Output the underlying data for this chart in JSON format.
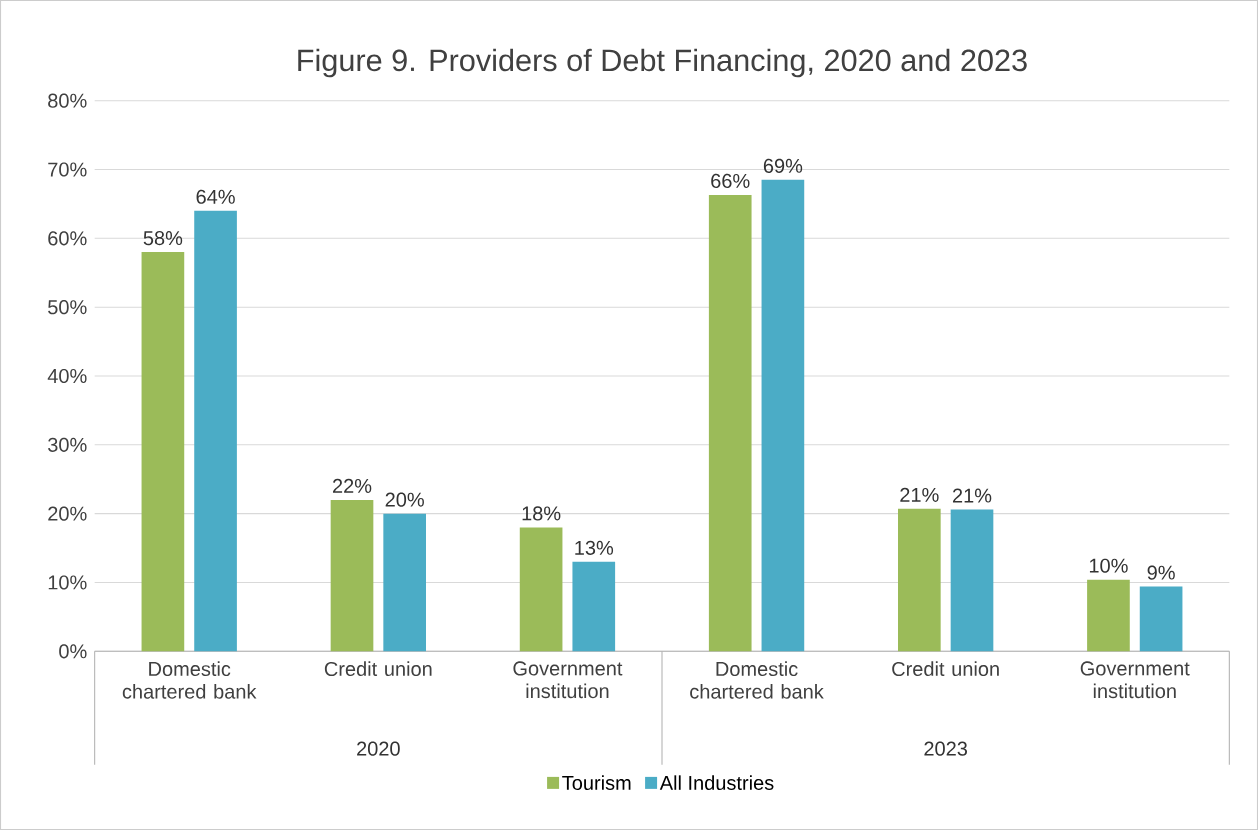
{
  "chart_data": {
    "type": "bar",
    "title": "Figure 9. Providers of Debt Financing, 2020 and 2023",
    "categories": [
      "Domestic chartered bank",
      "Credit union",
      "Government institution",
      "Domestic chartered bank",
      "Credit union",
      "Government institution"
    ],
    "series": [
      {
        "name": "Tourism",
        "color": "#9bbb59",
        "values": [
          58,
          22,
          18,
          66.3,
          20.7,
          10.4
        ],
        "value_labels": [
          "58%",
          "22%",
          "18%",
          "66%",
          "21%",
          "10%"
        ]
      },
      {
        "name": "All Industries",
        "color": "#4bacc6",
        "values": [
          64,
          20,
          13,
          68.5,
          20.6,
          9.4
        ],
        "value_labels": [
          "64%",
          "20%",
          "13%",
          "69%",
          "21%",
          "9%"
        ]
      }
    ],
    "annotations": [
      "2020",
      "2023"
    ],
    "ylim": [
      0,
      80
    ],
    "yticks": [
      {
        "value": 0,
        "label": "0%"
      },
      {
        "value": 10,
        "label": "10%"
      },
      {
        "value": 20,
        "label": "20%"
      },
      {
        "value": 30,
        "label": "30%"
      },
      {
        "value": 40,
        "label": "40%"
      },
      {
        "value": 50,
        "label": "50%"
      },
      {
        "value": 60,
        "label": "60%"
      },
      {
        "value": 70,
        "label": "70%"
      },
      {
        "value": 80,
        "label": "80%"
      }
    ],
    "grid": "y",
    "legend": "bottom"
  }
}
